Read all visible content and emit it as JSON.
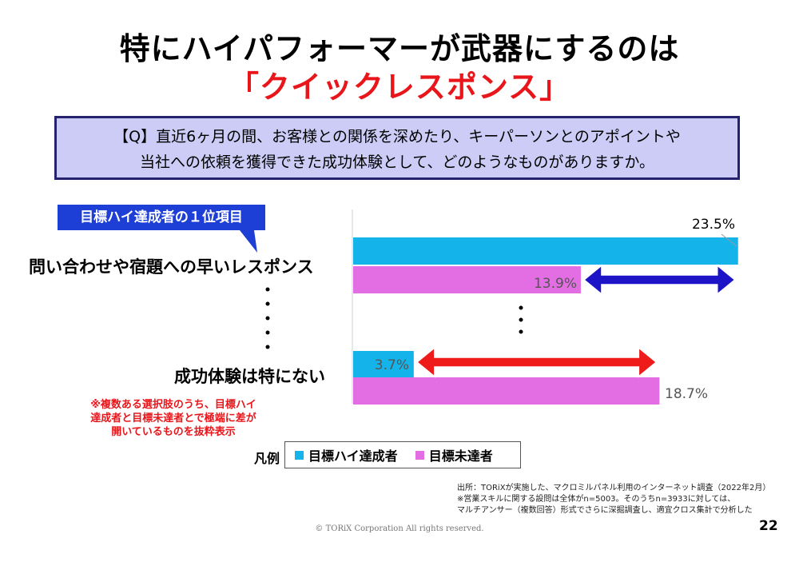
{
  "title_line1": "特にハイパフォーマーが武器にするのは",
  "title_line2": "「クイックレスポンス」",
  "question": {
    "line1": "【Q】直近6ヶ月の間、お客様との関係を深めたり、キーパーソンとのアポイントや",
    "line2": "当社への依頼を獲得できた成功体験として、どのようなものがありますか。"
  },
  "callout": "目標ハイ達成者の１位項目",
  "note": "※複数ある選択肢のうち、目標ハイ達成者と目標未達者とで極端に差が開いているものを抜粋表示",
  "legend": {
    "title": "凡例"
  },
  "source": {
    "line1": "出所：TORiXが実施した、マクロミルパネル利用のインターネット調査（2022年2月）",
    "line2": "※営業スキルに関する設問は全体がn=5003。そのうちn=3933に対しては、",
    "line3": "マルチアンサー（複数回答）形式でさらに深掘調査し、適宜クロス集計で分析した"
  },
  "footer": "© TORiX Corporation All rights reserved.",
  "page_number": "22",
  "colors": {
    "high": "#14b4ea",
    "low": "#e36ee3",
    "arrow_blue": "#1d14c8",
    "arrow_red": "#ef1a1a",
    "accent_red": "#e8161b"
  },
  "chart_data": {
    "type": "bar",
    "orientation": "horizontal",
    "unit": "%",
    "categories": [
      "問い合わせや宿題への早いレスポンス",
      "成功体験は特にない"
    ],
    "series": [
      {
        "name": "目標ハイ達成者",
        "values": [
          23.5,
          3.7
        ],
        "labels": [
          "23.5%",
          "3.7%"
        ]
      },
      {
        "name": "目標未達者",
        "values": [
          13.9,
          18.7
        ],
        "labels": [
          "13.9%",
          "18.7%"
        ]
      }
    ]
  }
}
